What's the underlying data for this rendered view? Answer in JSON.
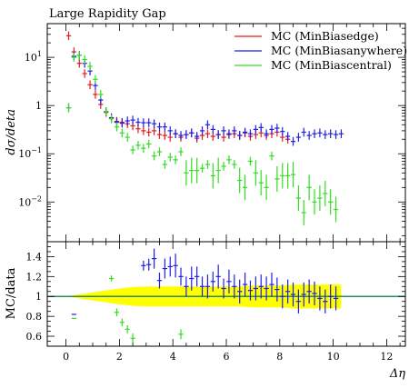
{
  "chart_data": [
    {
      "type": "scatter",
      "panel": "main",
      "title": "Large Rapidity Gap",
      "xlabel": "",
      "ylabel": "dσ/deta",
      "yscale": "log",
      "xlim": [
        -0.7,
        12.7
      ],
      "ylim": [
        0.0015,
        50
      ],
      "yticks": [
        {
          "value": 0.01,
          "base": "10",
          "exp": "−2"
        },
        {
          "value": 0.1,
          "base": "10",
          "exp": "−1"
        },
        {
          "value": 1,
          "base": "1",
          "exp": ""
        },
        {
          "value": 10,
          "base": "10",
          "exp": "1"
        }
      ],
      "grid": false,
      "legend_position": "top-right",
      "series": [
        {
          "name": "MC (MinBiasedge)",
          "color": "#e41a1c",
          "points": [
            [
              0.1,
              28
            ],
            [
              0.3,
              13
            ],
            [
              0.5,
              7.5
            ],
            [
              0.7,
              4.6
            ],
            [
              0.9,
              2.7
            ],
            [
              1.1,
              1.7
            ],
            [
              1.3,
              1.05
            ],
            [
              1.5,
              0.72
            ],
            [
              1.7,
              0.55
            ],
            [
              1.9,
              0.47
            ],
            [
              2.1,
              0.45
            ],
            [
              2.3,
              0.42
            ],
            [
              2.5,
              0.38
            ],
            [
              2.7,
              0.33
            ],
            [
              2.9,
              0.3
            ],
            [
              3.1,
              0.28
            ],
            [
              3.3,
              0.3
            ],
            [
              3.5,
              0.25
            ],
            [
              3.7,
              0.24
            ],
            [
              3.9,
              0.22
            ],
            [
              4.1,
              0.26
            ],
            [
              4.3,
              0.22
            ],
            [
              4.5,
              0.25
            ],
            [
              4.7,
              0.27
            ],
            [
              4.9,
              0.21
            ],
            [
              5.1,
              0.24
            ],
            [
              5.3,
              0.26
            ],
            [
              5.5,
              0.23
            ],
            [
              5.7,
              0.25
            ],
            [
              5.9,
              0.22
            ],
            [
              6.1,
              0.25
            ],
            [
              6.3,
              0.26
            ],
            [
              6.5,
              0.24
            ],
            [
              6.7,
              0.27
            ],
            [
              6.9,
              0.23
            ],
            [
              7.1,
              0.25
            ],
            [
              7.3,
              0.27
            ],
            [
              7.5,
              0.24
            ],
            [
              7.7,
              0.26
            ],
            [
              7.9,
              0.28
            ],
            [
              8.1,
              0.22
            ],
            [
              8.3,
              0.2
            ]
          ]
        },
        {
          "name": "MC (MinBiasanywhere)",
          "color": "#1f1fe6",
          "points": [
            [
              0.1,
              0.9
            ],
            [
              0.3,
              10.5
            ],
            [
              0.5,
              11
            ],
            [
              0.7,
              7.5
            ],
            [
              0.9,
              5.2
            ],
            [
              1.1,
              2.6
            ],
            [
              1.3,
              1.3
            ],
            [
              1.5,
              0.75
            ],
            [
              1.7,
              0.56
            ],
            [
              1.9,
              0.45
            ],
            [
              2.1,
              0.43
            ],
            [
              2.3,
              0.48
            ],
            [
              2.5,
              0.5
            ],
            [
              2.7,
              0.45
            ],
            [
              2.9,
              0.44
            ],
            [
              3.1,
              0.44
            ],
            [
              3.3,
              0.42
            ],
            [
              3.5,
              0.36
            ],
            [
              3.7,
              0.36
            ],
            [
              3.9,
              0.3
            ],
            [
              4.1,
              0.26
            ],
            [
              4.3,
              0.24
            ],
            [
              4.5,
              0.25
            ],
            [
              4.7,
              0.27
            ],
            [
              4.9,
              0.23
            ],
            [
              5.1,
              0.3
            ],
            [
              5.3,
              0.4
            ],
            [
              5.5,
              0.32
            ],
            [
              5.7,
              0.25
            ],
            [
              5.9,
              0.3
            ],
            [
              6.1,
              0.26
            ],
            [
              6.3,
              0.3
            ],
            [
              6.5,
              0.24
            ],
            [
              6.7,
              0.28
            ],
            [
              6.9,
              0.26
            ],
            [
              7.1,
              0.32
            ],
            [
              7.3,
              0.35
            ],
            [
              7.5,
              0.26
            ],
            [
              7.7,
              0.32
            ],
            [
              7.9,
              0.34
            ],
            [
              8.1,
              0.29
            ],
            [
              8.3,
              0.23
            ],
            [
              8.5,
              0.18
            ],
            [
              8.7,
              0.22
            ],
            [
              8.9,
              0.28
            ],
            [
              9.1,
              0.24
            ],
            [
              9.3,
              0.26
            ],
            [
              9.5,
              0.27
            ],
            [
              9.7,
              0.25
            ],
            [
              9.9,
              0.26
            ],
            [
              10.1,
              0.25
            ],
            [
              10.3,
              0.26
            ]
          ]
        },
        {
          "name": "MC (MinBiascentral)",
          "color": "#33dd22",
          "points": [
            [
              0.1,
              0.9
            ],
            [
              0.3,
              10
            ],
            [
              0.5,
              11
            ],
            [
              0.7,
              9
            ],
            [
              0.9,
              6.5
            ],
            [
              1.1,
              3.5
            ],
            [
              1.3,
              1.7
            ],
            [
              1.5,
              0.75
            ],
            [
              1.7,
              0.53
            ],
            [
              1.9,
              0.36
            ],
            [
              2.1,
              0.27
            ],
            [
              2.3,
              0.22
            ],
            [
              2.5,
              0.12
            ],
            [
              2.7,
              0.15
            ],
            [
              2.9,
              0.13
            ],
            [
              3.1,
              0.16
            ],
            [
              3.3,
              0.09
            ],
            [
              3.5,
              0.11
            ],
            [
              3.7,
              0.06
            ],
            [
              3.9,
              0.085
            ],
            [
              4.1,
              0.075
            ],
            [
              4.3,
              0.11
            ],
            [
              4.5,
              0.04
            ],
            [
              4.7,
              0.045
            ],
            [
              4.9,
              0.045
            ],
            [
              5.1,
              0.05
            ],
            [
              5.3,
              0.06
            ],
            [
              5.5,
              0.035
            ],
            [
              5.7,
              0.045
            ],
            [
              5.9,
              0.055
            ],
            [
              6.1,
              0.075
            ],
            [
              6.3,
              0.06
            ],
            [
              6.5,
              0.028
            ],
            [
              6.7,
              0.02
            ],
            [
              6.9,
              0.07
            ],
            [
              7.1,
              0.04
            ],
            [
              7.3,
              0.025
            ],
            [
              7.5,
              0.02
            ],
            [
              7.7,
              0.09
            ],
            [
              7.9,
              0.03
            ],
            [
              8.1,
              0.035
            ],
            [
              8.3,
              0.035
            ],
            [
              8.5,
              0.037
            ],
            [
              8.7,
              0.012
            ],
            [
              8.9,
              0.006
            ],
            [
              9.1,
              0.02
            ],
            [
              9.3,
              0.01
            ],
            [
              9.5,
              0.012
            ],
            [
              9.7,
              0.015
            ],
            [
              9.9,
              0.01
            ],
            [
              10.1,
              0.007
            ]
          ]
        }
      ]
    },
    {
      "type": "scatter",
      "panel": "ratio",
      "xlabel": "Δη",
      "ylabel": "MC/data",
      "xlim": [
        -0.7,
        12.7
      ],
      "ylim": [
        0.5,
        1.55
      ],
      "xticks": [
        0,
        2,
        4,
        6,
        8,
        10,
        12
      ],
      "yticks": [
        0.6,
        0.8,
        1,
        1.2,
        1.4
      ],
      "grid": false,
      "reference_line": {
        "y": 1.0,
        "color": "#2e8b57"
      },
      "uncertainty_band": {
        "color": "#ffff00",
        "x": [
          0.0,
          0.5,
          1.0,
          1.5,
          2.0,
          2.5,
          3.0,
          3.5,
          4.0,
          4.5,
          5.0,
          5.5,
          6.0,
          6.5,
          7.0,
          7.5,
          8.0,
          8.5,
          9.0,
          9.5,
          10.0,
          10.3
        ],
        "halfwidth": [
          0.0,
          0.02,
          0.04,
          0.06,
          0.08,
          0.095,
          0.1,
          0.1,
          0.1,
          0.1,
          0.1,
          0.1,
          0.1,
          0.1,
          0.11,
          0.11,
          0.11,
          0.12,
          0.12,
          0.12,
          0.12,
          0.12
        ]
      },
      "series": [
        {
          "name": "MC (MinBiasanywhere)",
          "color": "#1f1fe6",
          "points": [
            [
              0.3,
              0.82,
              0.0
            ],
            [
              2.9,
              1.31,
              0.05
            ],
            [
              3.1,
              1.32,
              0.06
            ],
            [
              3.3,
              1.38,
              0.1
            ],
            [
              3.5,
              1.16,
              0.08
            ],
            [
              3.7,
              1.28,
              0.1
            ],
            [
              3.9,
              1.3,
              0.1
            ],
            [
              4.1,
              1.31,
              0.12
            ],
            [
              4.3,
              1.2,
              0.09
            ],
            [
              4.5,
              1.1,
              0.1
            ],
            [
              4.7,
              1.18,
              0.12
            ],
            [
              4.9,
              1.2,
              0.1
            ],
            [
              5.1,
              1.1,
              0.1
            ],
            [
              5.3,
              1.1,
              0.12
            ],
            [
              5.5,
              1.15,
              0.1
            ],
            [
              5.7,
              1.2,
              0.12
            ],
            [
              5.9,
              1.08,
              0.1
            ],
            [
              6.1,
              1.15,
              0.12
            ],
            [
              6.3,
              1.1,
              0.12
            ],
            [
              6.5,
              1.05,
              0.12
            ],
            [
              6.7,
              1.12,
              0.12
            ],
            [
              6.9,
              1.06,
              0.1
            ],
            [
              7.1,
              1.08,
              0.12
            ],
            [
              7.3,
              1.1,
              0.12
            ],
            [
              7.5,
              1.08,
              0.12
            ],
            [
              7.7,
              1.12,
              0.12
            ],
            [
              7.9,
              1.07,
              0.12
            ],
            [
              8.1,
              1.0,
              0.12
            ],
            [
              8.3,
              1.05,
              0.12
            ],
            [
              8.5,
              1.02,
              0.12
            ],
            [
              8.7,
              0.95,
              0.12
            ],
            [
              8.9,
              1.02,
              0.12
            ],
            [
              9.1,
              1.05,
              0.12
            ],
            [
              9.3,
              1.03,
              0.12
            ],
            [
              9.5,
              0.98,
              0.12
            ],
            [
              9.7,
              0.95,
              0.12
            ],
            [
              9.9,
              1.0,
              0.12
            ],
            [
              10.1,
              0.98,
              0.12
            ]
          ]
        },
        {
          "name": "MC (MinBiascentral)",
          "color": "#33dd22",
          "points": [
            [
              0.3,
              0.78,
              0.0
            ],
            [
              1.7,
              1.18,
              0.03
            ],
            [
              1.9,
              0.84,
              0.04
            ],
            [
              2.1,
              0.74,
              0.04
            ],
            [
              2.3,
              0.67,
              0.04
            ],
            [
              2.5,
              0.58,
              0.05
            ],
            [
              4.3,
              0.62,
              0.05
            ]
          ]
        }
      ]
    }
  ]
}
